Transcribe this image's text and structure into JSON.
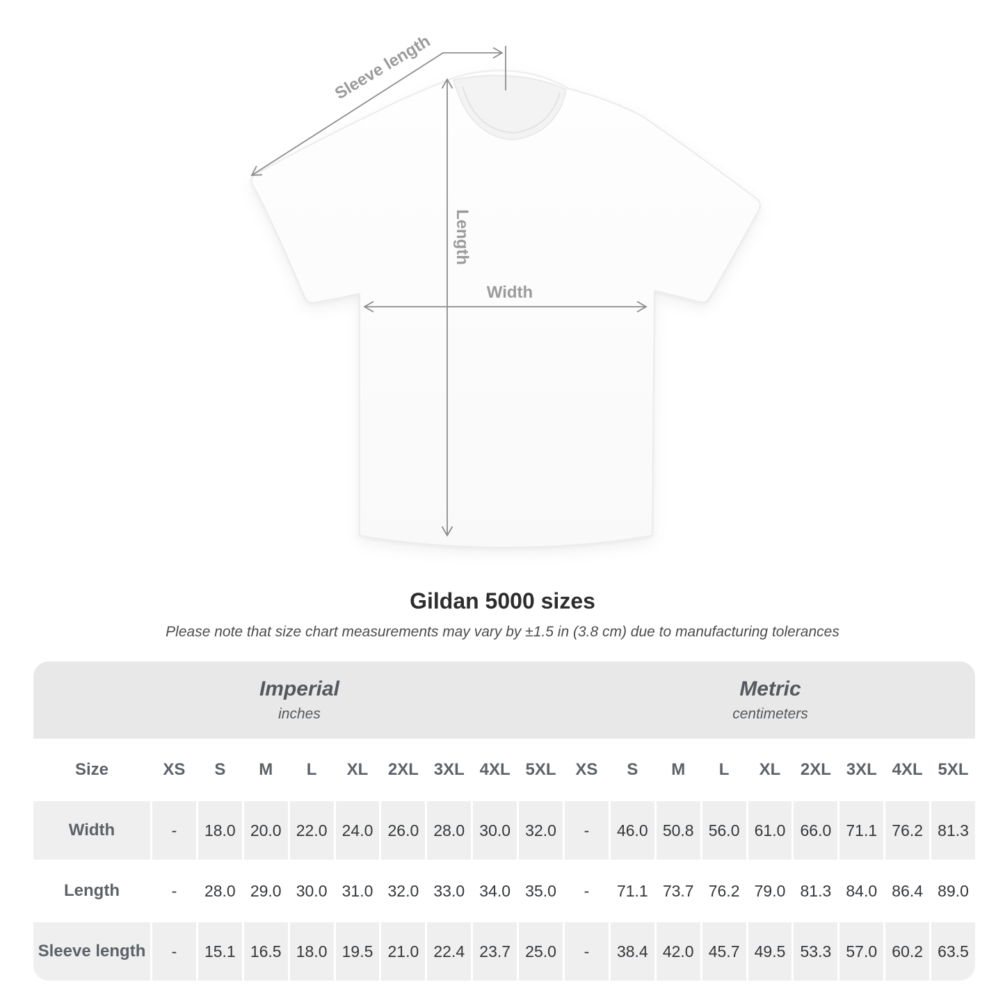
{
  "diagram": {
    "labels": {
      "sleeve": "Sleeve length",
      "length": "Length",
      "width": "Width"
    }
  },
  "caption": {
    "title": "Gildan 5000 sizes",
    "subtitle": "Please note that size chart measurements may vary by ±1.5 in (3.8 cm) due to manufacturing tolerances"
  },
  "chart_data": {
    "type": "table",
    "title": "Gildan 5000 sizes",
    "note": "Please note that size chart measurements may vary by ±1.5 in (3.8 cm) due to manufacturing tolerances",
    "row_header": "Size",
    "sections": [
      {
        "name": "Imperial",
        "unit": "inches"
      },
      {
        "name": "Metric",
        "unit": "centimeters"
      }
    ],
    "sizes": [
      "XS",
      "S",
      "M",
      "L",
      "XL",
      "2XL",
      "3XL",
      "4XL",
      "5XL"
    ],
    "rows": [
      {
        "label": "Width",
        "imperial": [
          "-",
          "18.0",
          "20.0",
          "22.0",
          "24.0",
          "26.0",
          "28.0",
          "30.0",
          "32.0"
        ],
        "metric": [
          "-",
          "46.0",
          "50.8",
          "56.0",
          "61.0",
          "66.0",
          "71.1",
          "76.2",
          "81.3"
        ]
      },
      {
        "label": "Length",
        "imperial": [
          "-",
          "28.0",
          "29.0",
          "30.0",
          "31.0",
          "32.0",
          "33.0",
          "34.0",
          "35.0"
        ],
        "metric": [
          "-",
          "71.1",
          "73.7",
          "76.2",
          "79.0",
          "81.3",
          "84.0",
          "86.4",
          "89.0"
        ]
      },
      {
        "label": "Sleeve length",
        "imperial": [
          "-",
          "15.1",
          "16.5",
          "18.0",
          "19.5",
          "21.0",
          "22.4",
          "23.7",
          "25.0"
        ],
        "metric": [
          "-",
          "38.4",
          "42.0",
          "45.7",
          "49.5",
          "53.3",
          "57.0",
          "60.2",
          "63.5"
        ]
      }
    ]
  }
}
